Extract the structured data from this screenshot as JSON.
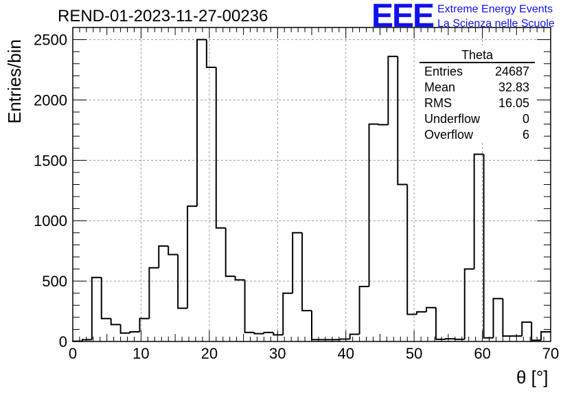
{
  "plot_title": "REND-01-2023-11-27-00236",
  "logo": {
    "mark": "EEE",
    "line1": "Extreme Energy Events",
    "line2": "La Scienza nelle Scuole",
    "color": "#1010ee"
  },
  "stats_box": {
    "title": "Theta",
    "rows": [
      {
        "label": "Entries",
        "value": "24687"
      },
      {
        "label": "Mean",
        "value": "32.83"
      },
      {
        "label": "RMS",
        "value": "16.05"
      },
      {
        "label": "Underflow",
        "value": "0"
      },
      {
        "label": "Overflow",
        "value": "6"
      }
    ]
  },
  "chart_data": {
    "type": "bar",
    "histogram": "step",
    "title": "REND-01-2023-11-27-00236",
    "xlabel": "θ [°]",
    "ylabel": "Entries/bin",
    "xlim": [
      0,
      70
    ],
    "ylim": [
      0,
      2600
    ],
    "bin_width": 1.4,
    "bin_start": 0,
    "grid": true,
    "legend": "none",
    "x_ticks": [
      "0",
      "10",
      "20",
      "30",
      "40",
      "50",
      "60",
      "70"
    ],
    "y_ticks": [
      "0",
      "500",
      "1000",
      "1500",
      "2000",
      "2500"
    ],
    "x_tick_values": [
      0,
      10,
      20,
      30,
      40,
      50,
      60,
      70
    ],
    "y_tick_values": [
      0,
      500,
      1000,
      1500,
      2000,
      2500
    ],
    "values": [
      2,
      15,
      530,
      190,
      140,
      70,
      80,
      190,
      610,
      790,
      720,
      275,
      1120,
      2500,
      2270,
      940,
      540,
      510,
      75,
      65,
      75,
      55,
      400,
      900,
      255,
      15,
      15,
      15,
      20,
      60,
      455,
      1800,
      1795,
      2360,
      1300,
      225,
      245,
      280,
      18,
      22,
      18,
      600,
      1550,
      30,
      355,
      45,
      45,
      160,
      10,
      80
    ],
    "overflow_bin": 6
  }
}
